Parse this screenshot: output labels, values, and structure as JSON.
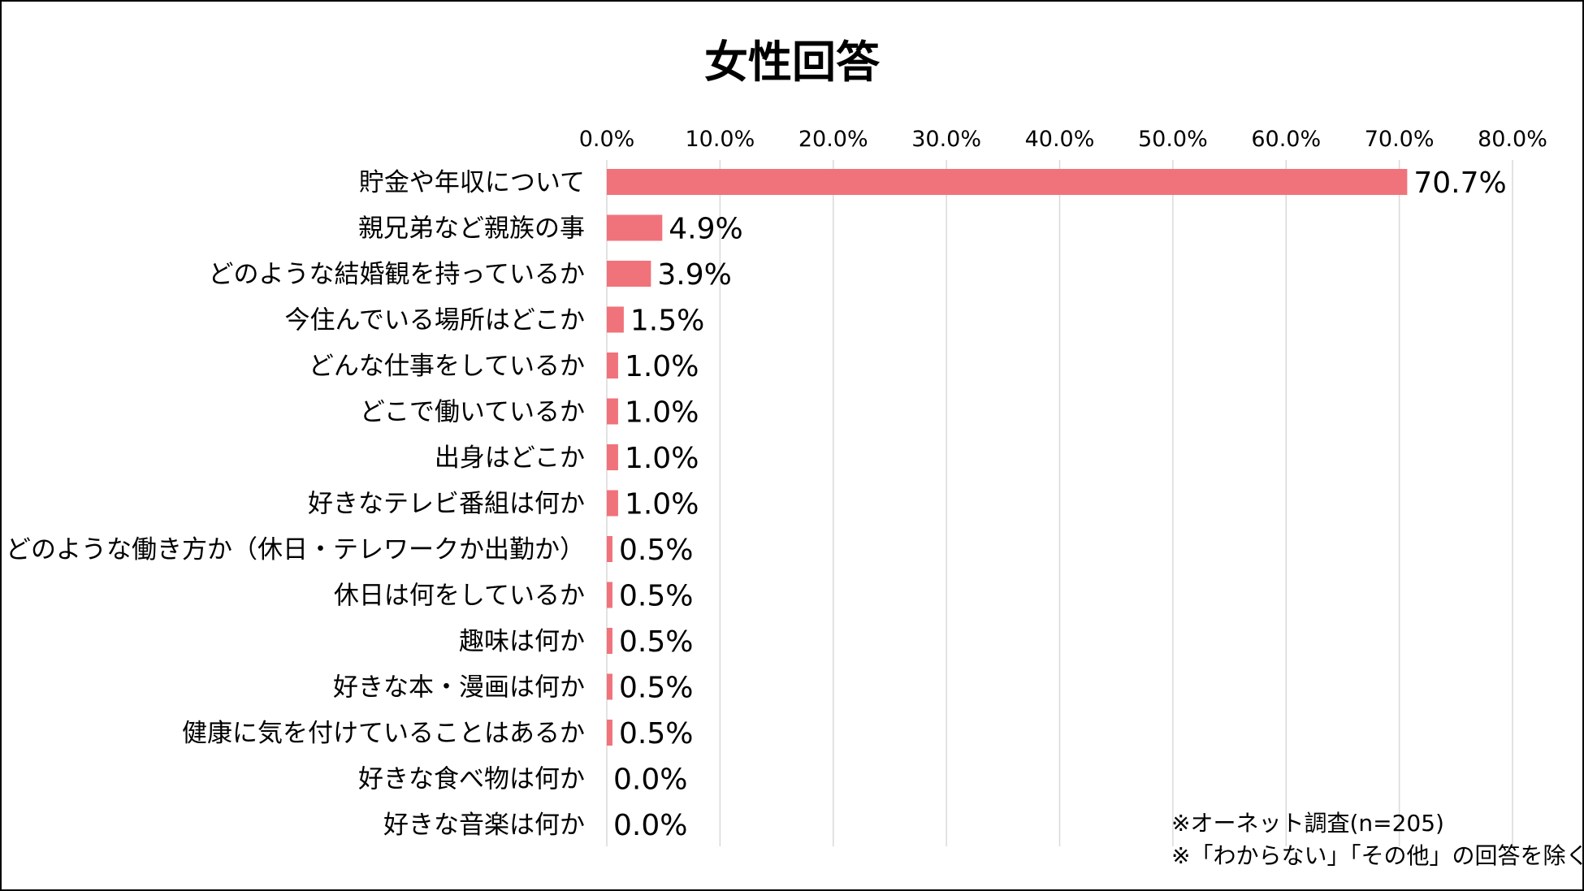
{
  "chart_data": {
    "type": "bar",
    "orientation": "horizontal",
    "title": "女性回答",
    "categories": [
      "貯金や年収について",
      "親兄弟など親族の事",
      "どのような結婚観を持っているか",
      "今住んでいる場所はどこか",
      "どんな仕事をしているか",
      "どこで働いているか",
      "出身はどこか",
      "好きなテレビ番組は何か",
      "どのような働き方か（休日・テレワークか出勤か）",
      "休日は何をしているか",
      "趣味は何か",
      "好きな本・漫画は何か",
      "健康に気を付けていることはあるか",
      "好きな食べ物は何か",
      "好きな音楽は何か"
    ],
    "values": [
      70.7,
      4.9,
      3.9,
      1.5,
      1.0,
      1.0,
      1.0,
      1.0,
      0.5,
      0.5,
      0.5,
      0.5,
      0.5,
      0.0,
      0.0
    ],
    "data_labels": [
      "70.7%",
      "4.9%",
      "3.9%",
      "1.5%",
      "1.0%",
      "1.0%",
      "1.0%",
      "1.0%",
      "0.5%",
      "0.5%",
      "0.5%",
      "0.5%",
      "0.5%",
      "0.0%",
      "0.0%"
    ],
    "xlim": [
      0,
      80
    ],
    "x_ticks": [
      "0.0%",
      "10.0%",
      "20.0%",
      "30.0%",
      "40.0%",
      "50.0%",
      "60.0%",
      "70.0%",
      "80.0%"
    ],
    "x_axis_position": "top",
    "grid": true,
    "legend": "none",
    "bar_color": "#f0737b",
    "grid_color": "#d9d9d9"
  },
  "notes": [
    "※オーネット調査(n=205)",
    "※「わからない」「その他」の回答を除く"
  ]
}
